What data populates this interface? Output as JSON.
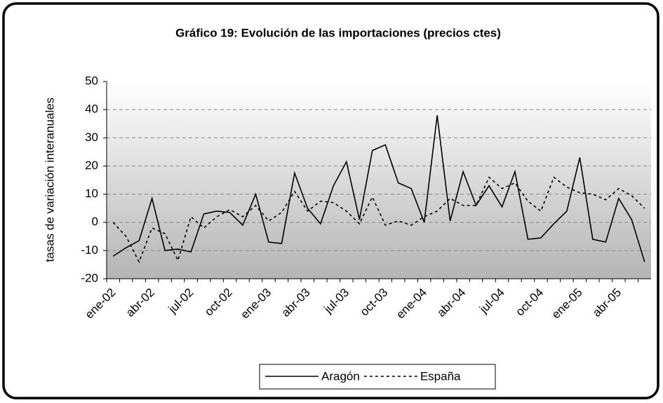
{
  "chart_data": {
    "type": "line",
    "title": "Gráfico 19: Evolución de las importaciones (precios ctes)",
    "y_label": "tasas de variación interanuales",
    "categories": [
      "ene-02",
      null,
      null,
      "abr-02",
      null,
      null,
      "jul-02",
      null,
      null,
      "oct-02",
      null,
      null,
      "ene-03",
      null,
      null,
      "abr-03",
      null,
      null,
      "jul-03",
      null,
      null,
      "oct-03",
      null,
      null,
      "ene-04",
      null,
      null,
      "abr-04",
      null,
      null,
      "jul-04",
      null,
      null,
      "oct-04",
      null,
      null,
      "ene-05",
      null,
      null,
      "abr-05",
      null,
      null
    ],
    "series": [
      {
        "name": "Aragón",
        "color": "#000000",
        "dash": "solid",
        "values": [
          -12,
          -9,
          -6.5,
          8.5,
          -10,
          -9.5,
          -10.5,
          3,
          4,
          3.5,
          -1,
          10,
          -7,
          -7.5,
          17.5,
          5,
          -0.5,
          13,
          21.5,
          1,
          25.5,
          27.5,
          14,
          12,
          0,
          38,
          0.5,
          18,
          6,
          13,
          5.5,
          18,
          -6,
          -5.5,
          -0.5,
          4,
          23,
          -6,
          -7,
          8.5,
          1,
          -14
        ]
      },
      {
        "name": "España",
        "color": "#000000",
        "dash": "dashed",
        "values": [
          0,
          -5,
          -14,
          -2,
          -4,
          -13.5,
          2,
          -2,
          2,
          4.5,
          2,
          6,
          0.5,
          3.5,
          11,
          4,
          7.5,
          7,
          4,
          -0.5,
          9,
          -1,
          0.5,
          -1,
          2,
          4,
          8.5,
          6,
          6,
          16,
          12,
          14,
          7.5,
          4,
          16,
          12.5,
          10.5,
          10,
          8,
          12,
          9.5,
          5
        ]
      }
    ],
    "ylim": [
      -20,
      50
    ],
    "yticks": [
      -20,
      -10,
      0,
      10,
      20,
      30,
      40,
      50
    ],
    "grid": true,
    "legend": "bottom"
  }
}
